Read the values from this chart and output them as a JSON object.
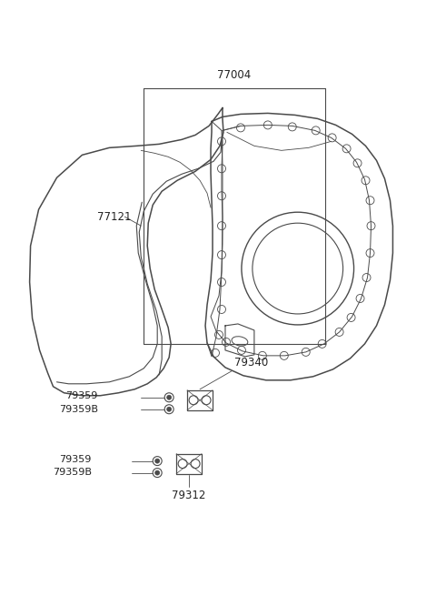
{
  "bg_color": "#ffffff",
  "line_color": "#4a4a4a",
  "text_color": "#222222",
  "lw": 1.0
}
